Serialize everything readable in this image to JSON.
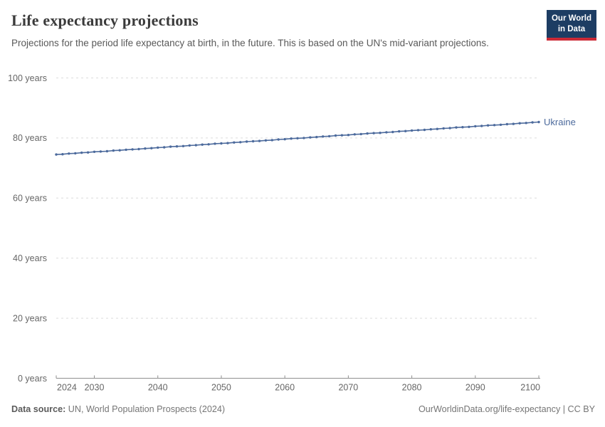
{
  "header": {
    "title": "Life expectancy projections",
    "subtitle": "Projections for the period life expectancy at birth, in the future. This is based on the UN's mid-variant projections.",
    "logo": {
      "line1": "Our World",
      "line2": "in Data",
      "bg_color": "#1d3d63",
      "accent_color": "#cc2a36"
    }
  },
  "chart_data": {
    "type": "line",
    "title": "Life expectancy projections",
    "xlabel": "",
    "ylabel": "",
    "xlim": [
      2024,
      2100
    ],
    "ylim": [
      0,
      100
    ],
    "grid": "horizontal-dashed",
    "legend_position": "end-of-line-label",
    "x_ticks": [
      {
        "value": 2024,
        "label": "2024"
      },
      {
        "value": 2030,
        "label": "2030"
      },
      {
        "value": 2040,
        "label": "2040"
      },
      {
        "value": 2050,
        "label": "2050"
      },
      {
        "value": 2060,
        "label": "2060"
      },
      {
        "value": 2070,
        "label": "2070"
      },
      {
        "value": 2080,
        "label": "2080"
      },
      {
        "value": 2090,
        "label": "2090"
      },
      {
        "value": 2100,
        "label": "2100"
      }
    ],
    "y_ticks": [
      {
        "value": 0,
        "label": "0 years"
      },
      {
        "value": 20,
        "label": "20 years"
      },
      {
        "value": 40,
        "label": "40 years"
      },
      {
        "value": 60,
        "label": "60 years"
      },
      {
        "value": 80,
        "label": "80 years"
      },
      {
        "value": 100,
        "label": "100 years"
      }
    ],
    "series": [
      {
        "name": "Ukraine",
        "color": "#4c6a9c",
        "years": [
          2024,
          2025,
          2026,
          2027,
          2028,
          2029,
          2030,
          2031,
          2032,
          2033,
          2034,
          2035,
          2036,
          2037,
          2038,
          2039,
          2040,
          2041,
          2042,
          2043,
          2044,
          2045,
          2046,
          2047,
          2048,
          2049,
          2050,
          2051,
          2052,
          2053,
          2054,
          2055,
          2056,
          2057,
          2058,
          2059,
          2060,
          2061,
          2062,
          2063,
          2064,
          2065,
          2066,
          2067,
          2068,
          2069,
          2070,
          2071,
          2072,
          2073,
          2074,
          2075,
          2076,
          2077,
          2078,
          2079,
          2080,
          2081,
          2082,
          2083,
          2084,
          2085,
          2086,
          2087,
          2088,
          2089,
          2090,
          2091,
          2092,
          2093,
          2094,
          2095,
          2096,
          2097,
          2098,
          2099,
          2100
        ],
        "values": [
          74.5,
          74.6,
          74.8,
          74.9,
          75.1,
          75.2,
          75.4,
          75.5,
          75.6,
          75.8,
          75.9,
          76.1,
          76.2,
          76.3,
          76.5,
          76.6,
          76.8,
          76.9,
          77.1,
          77.2,
          77.3,
          77.5,
          77.6,
          77.8,
          77.9,
          78.1,
          78.2,
          78.3,
          78.5,
          78.6,
          78.8,
          78.9,
          79.0,
          79.2,
          79.3,
          79.5,
          79.6,
          79.8,
          79.9,
          80.0,
          80.2,
          80.3,
          80.5,
          80.6,
          80.8,
          80.9,
          81.0,
          81.2,
          81.3,
          81.5,
          81.6,
          81.7,
          81.9,
          82.0,
          82.2,
          82.3,
          82.5,
          82.6,
          82.7,
          82.9,
          83.0,
          83.2,
          83.3,
          83.5,
          83.6,
          83.7,
          83.9,
          84.0,
          84.2,
          84.3,
          84.4,
          84.6,
          84.7,
          84.9,
          85.0,
          85.2,
          85.3
        ]
      }
    ]
  },
  "footer": {
    "datasource_label": "Data source:",
    "datasource_value": " UN, World Population Prospects (2024)",
    "link": "OurWorldinData.org/life-expectancy | CC BY"
  },
  "colors": {
    "gridline": "#dcdcdc",
    "axis": "#8f8f8f",
    "tick_label": "#666666",
    "series_ukraine": "#4c6a9c"
  }
}
